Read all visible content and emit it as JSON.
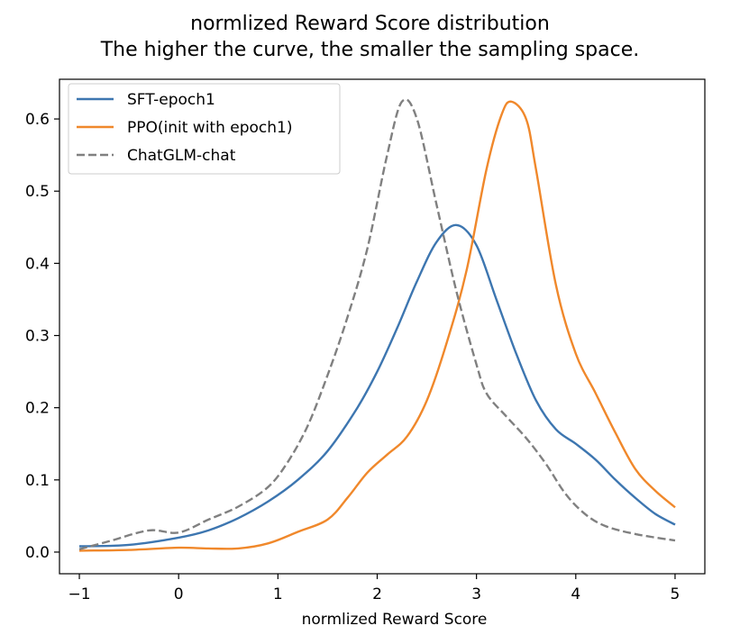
{
  "chart_data": {
    "type": "line",
    "title_line1": "normlized Reward Score distribution",
    "title_line2": "The higher the curve, the smaller the sampling space.",
    "xlabel": "normlized Reward Score",
    "ylabel": "",
    "xlim": [
      -1.2,
      5.3
    ],
    "ylim": [
      -0.03,
      0.655
    ],
    "xticks": [
      -1,
      0,
      1,
      2,
      3,
      4,
      5
    ],
    "yticks": [
      0.0,
      0.1,
      0.2,
      0.3,
      0.4,
      0.5,
      0.6
    ],
    "grid": false,
    "legend_position": "upper left",
    "series": [
      {
        "name": "SFT-epoch1",
        "color": "#3d76b0",
        "dash": "solid",
        "points": [
          [
            -1,
            0.008
          ],
          [
            -0.5,
            0.01
          ],
          [
            0,
            0.02
          ],
          [
            0.3,
            0.03
          ],
          [
            0.6,
            0.047
          ],
          [
            0.9,
            0.07
          ],
          [
            1.2,
            0.1
          ],
          [
            1.5,
            0.14
          ],
          [
            1.8,
            0.2
          ],
          [
            2.0,
            0.25
          ],
          [
            2.2,
            0.31
          ],
          [
            2.4,
            0.375
          ],
          [
            2.6,
            0.43
          ],
          [
            2.8,
            0.453
          ],
          [
            3.0,
            0.425
          ],
          [
            3.2,
            0.35
          ],
          [
            3.4,
            0.275
          ],
          [
            3.6,
            0.21
          ],
          [
            3.8,
            0.17
          ],
          [
            4.0,
            0.15
          ],
          [
            4.2,
            0.128
          ],
          [
            4.4,
            0.1
          ],
          [
            4.6,
            0.075
          ],
          [
            4.8,
            0.053
          ],
          [
            5.0,
            0.038
          ]
        ]
      },
      {
        "name": "PPO(init with epoch1)",
        "color": "#f0882b",
        "dash": "solid",
        "points": [
          [
            -1,
            0.002
          ],
          [
            -0.5,
            0.003
          ],
          [
            0,
            0.006
          ],
          [
            0.3,
            0.005
          ],
          [
            0.6,
            0.005
          ],
          [
            0.9,
            0.012
          ],
          [
            1.2,
            0.028
          ],
          [
            1.5,
            0.045
          ],
          [
            1.7,
            0.075
          ],
          [
            1.9,
            0.11
          ],
          [
            2.1,
            0.135
          ],
          [
            2.3,
            0.16
          ],
          [
            2.5,
            0.21
          ],
          [
            2.7,
            0.29
          ],
          [
            2.9,
            0.39
          ],
          [
            3.1,
            0.53
          ],
          [
            3.25,
            0.605
          ],
          [
            3.35,
            0.624
          ],
          [
            3.5,
            0.6
          ],
          [
            3.6,
            0.53
          ],
          [
            3.8,
            0.37
          ],
          [
            4.0,
            0.275
          ],
          [
            4.2,
            0.22
          ],
          [
            4.4,
            0.165
          ],
          [
            4.6,
            0.115
          ],
          [
            4.8,
            0.085
          ],
          [
            5.0,
            0.062
          ]
        ]
      },
      {
        "name": "ChatGLM-chat",
        "color": "#808080",
        "dash": "dashed",
        "points": [
          [
            -1,
            0.004
          ],
          [
            -0.7,
            0.015
          ],
          [
            -0.3,
            0.03
          ],
          [
            0,
            0.027
          ],
          [
            0.3,
            0.045
          ],
          [
            0.6,
            0.063
          ],
          [
            0.9,
            0.09
          ],
          [
            1.1,
            0.125
          ],
          [
            1.3,
            0.175
          ],
          [
            1.5,
            0.245
          ],
          [
            1.7,
            0.325
          ],
          [
            1.9,
            0.42
          ],
          [
            2.1,
            0.55
          ],
          [
            2.25,
            0.624
          ],
          [
            2.4,
            0.6
          ],
          [
            2.6,
            0.48
          ],
          [
            2.8,
            0.36
          ],
          [
            3.0,
            0.26
          ],
          [
            3.1,
            0.22
          ],
          [
            3.3,
            0.188
          ],
          [
            3.5,
            0.158
          ],
          [
            3.7,
            0.122
          ],
          [
            3.9,
            0.08
          ],
          [
            4.1,
            0.052
          ],
          [
            4.3,
            0.036
          ],
          [
            4.6,
            0.025
          ],
          [
            5.0,
            0.016
          ]
        ]
      }
    ]
  }
}
